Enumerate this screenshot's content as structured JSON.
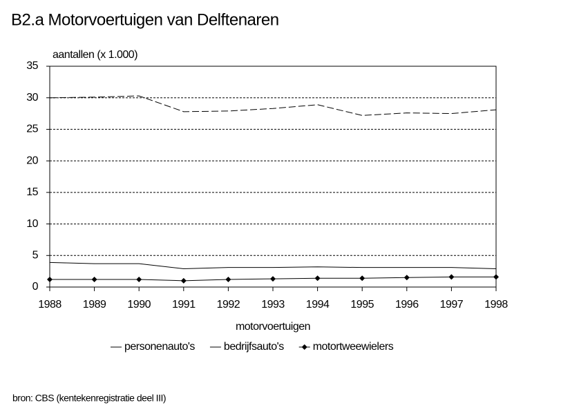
{
  "chart_data": {
    "type": "line",
    "title": "B2.a   Motorvoertuigen van Delftenaren",
    "y_label": "aantallen (x 1.000)",
    "x_label": "motorvoertuigen",
    "source": "bron: CBS (kentekenregistratie deel III)",
    "categories": [
      "1988",
      "1989",
      "1990",
      "1991",
      "1992",
      "1993",
      "1994",
      "1995",
      "1996",
      "1997",
      "1998"
    ],
    "series": [
      {
        "name": "personenauto's",
        "color": "#000000",
        "dash": true,
        "marker": "none",
        "values": [
          30.0,
          30.1,
          30.3,
          27.8,
          27.9,
          28.3,
          28.9,
          27.2,
          27.6,
          27.5,
          28.1
        ]
      },
      {
        "name": "bedrijfsauto's",
        "color": "#000000",
        "dash": false,
        "marker": "none",
        "values": [
          3.9,
          3.7,
          3.7,
          2.9,
          3.1,
          3.1,
          3.2,
          3.1,
          3.1,
          3.1,
          2.9
        ]
      },
      {
        "name": "motortweewielers",
        "color": "#000000",
        "dash": false,
        "marker": "diamond",
        "values": [
          1.2,
          1.2,
          1.2,
          1.0,
          1.2,
          1.3,
          1.4,
          1.4,
          1.5,
          1.6,
          1.6
        ]
      }
    ],
    "ylim": [
      0,
      35
    ],
    "yticks": [
      0,
      5,
      10,
      15,
      20,
      25,
      30,
      35
    ],
    "grid": true
  }
}
